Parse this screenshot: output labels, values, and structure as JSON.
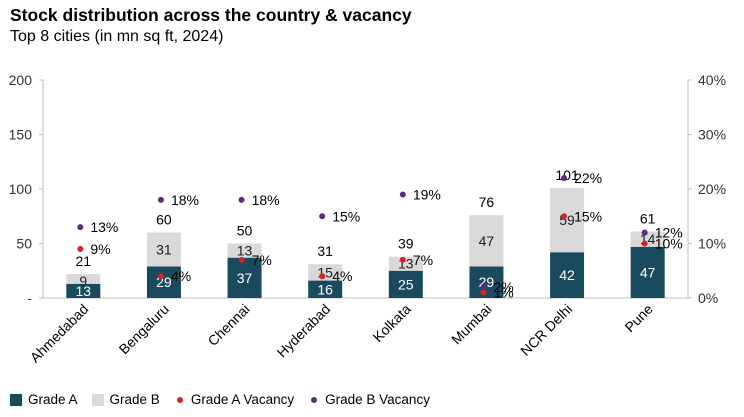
{
  "title": "Stock distribution across the country & vacancy",
  "subtitle": "Top 8 cities (in mn sq ft, 2024)",
  "colors": {
    "grade_a": "#1a4a5e",
    "grade_b": "#d9d9d9",
    "grade_a_vacancy": "#d62222",
    "grade_b_vacancy": "#5b2a7e"
  },
  "chart_data": {
    "type": "bar",
    "stacked": true,
    "categories": [
      "Ahmedabad",
      "Bengaluru",
      "Chennai",
      "Hyderabad",
      "Kolkata",
      "Mumbai",
      "NCR Delhi",
      "Pune"
    ],
    "series": [
      {
        "name": "Grade A",
        "values": [
          13,
          29,
          37,
          16,
          25,
          29,
          42,
          47
        ]
      },
      {
        "name": "Grade B",
        "values": [
          9,
          31,
          13,
          15,
          13,
          47,
          59,
          14
        ]
      }
    ],
    "totals": [
      21,
      60,
      50,
      31,
      39,
      76,
      101,
      61
    ],
    "vacancy_series": [
      {
        "name": "Grade A Vacancy",
        "values": [
          9,
          4,
          7,
          4,
          7,
          1,
          15,
          10
        ],
        "labels": [
          "9%",
          "4%",
          "7%",
          "4%",
          "7%",
          "1%",
          "15%",
          "10%"
        ]
      },
      {
        "name": "Grade B Vacancy",
        "values": [
          13,
          18,
          18,
          15,
          19,
          2,
          22,
          12
        ],
        "labels": [
          "13%",
          "18%",
          "18%",
          "15%",
          "19%",
          "2%",
          "22%",
          "12%"
        ]
      }
    ],
    "y_left": {
      "ylim": [
        0,
        200
      ],
      "ticks": [
        "-",
        "50",
        "100",
        "150",
        "200"
      ]
    },
    "y_right": {
      "ylim": [
        0,
        40
      ],
      "ticks": [
        "0%",
        "10%",
        "20%",
        "30%",
        "40%"
      ]
    },
    "grid": false,
    "legend": "bottom"
  }
}
